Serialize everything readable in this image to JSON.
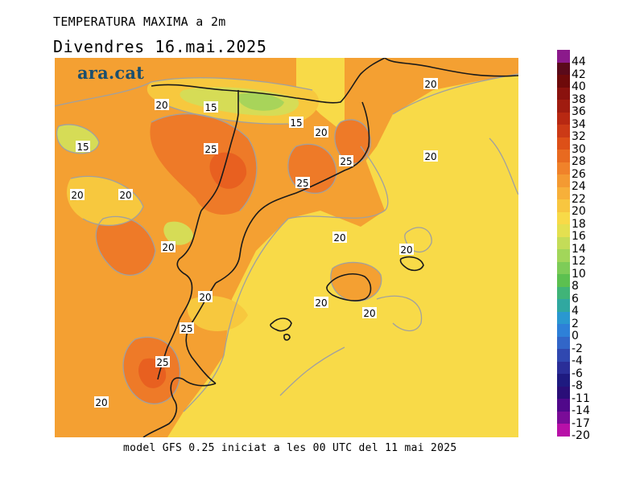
{
  "title": "TEMPERATURA MAXIMA a 2m",
  "subtitle": "Divendres  16.mai.2025",
  "brand": "ara.cat",
  "footer": "model GFS 0.25 iniciat a les 00 UTC del 11 mai 2025",
  "legend": {
    "labels": [
      "44",
      "42",
      "40",
      "38",
      "36",
      "34",
      "32",
      "30",
      "28",
      "26",
      "24",
      "22",
      "20",
      "18",
      "16",
      "14",
      "12",
      "10",
      "8",
      "6",
      "4",
      "2",
      "0",
      "-2",
      "-4",
      "-6",
      "-8",
      "-11",
      "-14",
      "-17",
      "-20"
    ],
    "colors": [
      "#8b1a8b",
      "#5a0a1a",
      "#6e0a0a",
      "#8a120e",
      "#a01c10",
      "#b82812",
      "#cc3a16",
      "#dd5018",
      "#e86a20",
      "#f0822a",
      "#f49a32",
      "#f7b03a",
      "#f8c640",
      "#f8da48",
      "#e4e050",
      "#c4dc58",
      "#a2d65a",
      "#7ecc58",
      "#5cc050",
      "#40b478",
      "#30a8a0",
      "#2a98d0",
      "#2e80d8",
      "#3266c8",
      "#3048b0",
      "#2a2e98",
      "#1e1a80",
      "#2a0e78",
      "#50088a",
      "#7a0c98",
      "#b810a8"
    ]
  },
  "contour_labels": [
    {
      "text": "20"
    },
    {
      "text": "15"
    },
    {
      "text": "15"
    },
    {
      "text": "15"
    },
    {
      "text": "20"
    },
    {
      "text": "25"
    },
    {
      "text": "20"
    },
    {
      "text": "20"
    },
    {
      "text": "25"
    },
    {
      "text": "20"
    },
    {
      "text": "25"
    },
    {
      "text": "20"
    },
    {
      "text": "20"
    },
    {
      "text": "20"
    },
    {
      "text": "20"
    },
    {
      "text": "20"
    },
    {
      "text": "20"
    },
    {
      "text": "25"
    },
    {
      "text": "25"
    },
    {
      "text": "20"
    },
    {
      "text": "20"
    }
  ],
  "map_colors": {
    "sea_base": "#f8da48",
    "land_warm": "#f4a032",
    "land_hot": "#ee7a28",
    "land_hotter": "#e86020",
    "cool_18": "#f7c83e",
    "cool_16": "#d6dc56",
    "cool_14": "#a8d45a",
    "coast": "#1a1a1a",
    "contour": "#a0a0a0"
  }
}
